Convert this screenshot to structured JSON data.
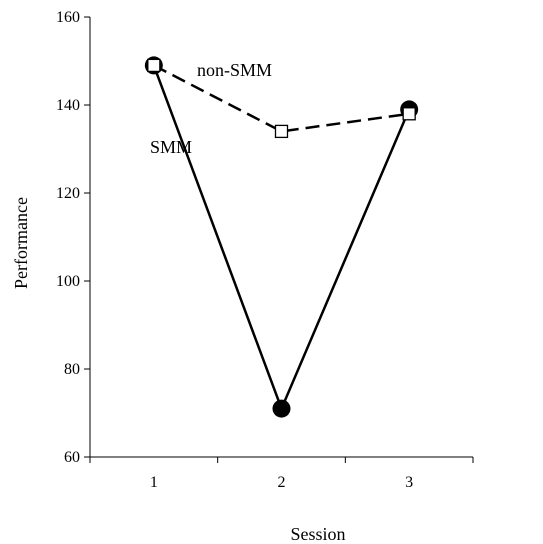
{
  "chart_data": {
    "type": "line",
    "xlabel": "Session",
    "ylabel": "Performance",
    "x": [
      1,
      2,
      3
    ],
    "x_ticks": [
      "1",
      "2",
      "3"
    ],
    "ylim": [
      60,
      160
    ],
    "y_ticks": [
      "60",
      "80",
      "100",
      "120",
      "140",
      "160"
    ],
    "grid": false,
    "series": [
      {
        "name": "SMM",
        "values": [
          149,
          71,
          139
        ],
        "line_style": "solid",
        "marker": "filled-circle",
        "color": "#000000"
      },
      {
        "name": "non-SMM",
        "values": [
          149,
          134,
          138
        ],
        "line_style": "dashed",
        "marker": "open-square",
        "color": "#000000"
      }
    ]
  }
}
